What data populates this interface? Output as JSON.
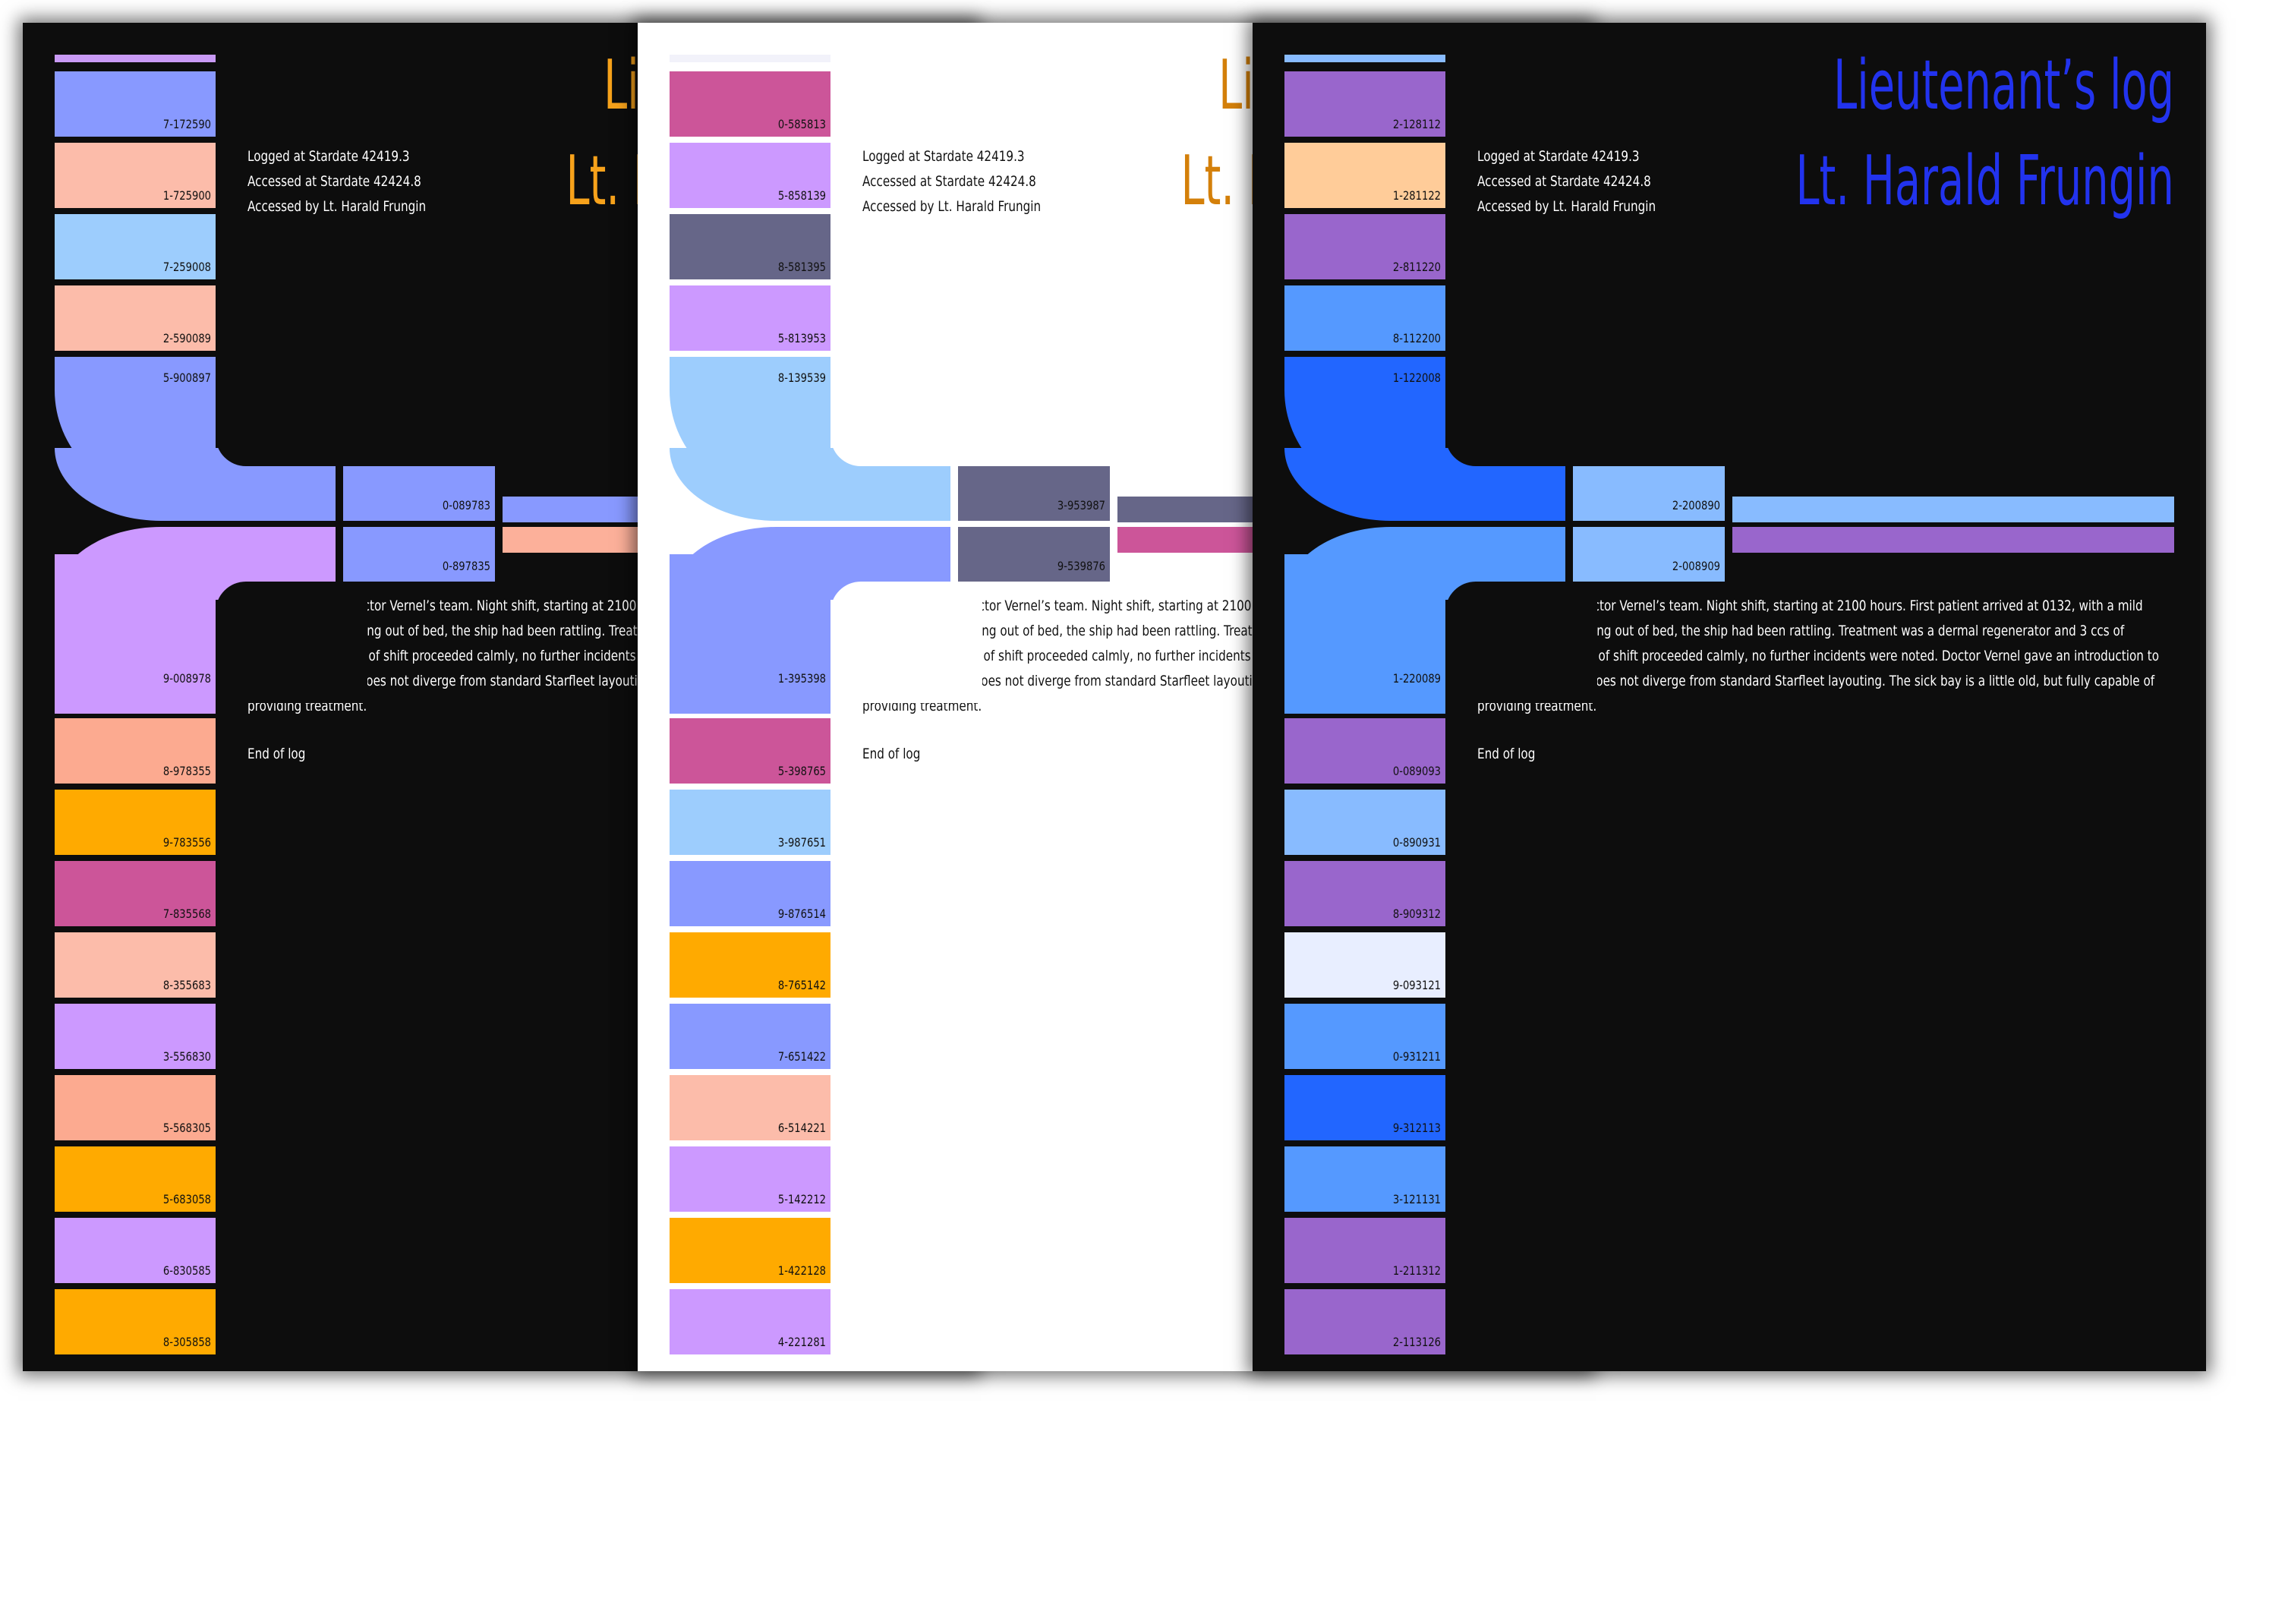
{
  "pages": [
    {
      "theme": "dark",
      "title_color": "#f7a21b",
      "top_strip_color": "#c99af5",
      "top_codes": [
        {
          "code": "7-172590",
          "color": "#8899ff"
        },
        {
          "code": "1-725900",
          "color": "#fcbcaa"
        },
        {
          "code": "7-259008",
          "color": "#9dcdfd"
        },
        {
          "code": "2-590089",
          "color": "#fcbcaa"
        }
      ],
      "elbow_top": {
        "code": "5-900897",
        "color": "#8899ff"
      },
      "elbow_bottom": {
        "code": "9-008978",
        "color": "#cc99ff"
      },
      "mid_codes": [
        {
          "code": "0-089783",
          "color": "#8899ff"
        },
        {
          "code": "0-897835",
          "color": "#8899ff"
        }
      ],
      "bar_colors": [
        "#8899ff",
        "#fcb09a"
      ],
      "bottom_codes": [
        {
          "code": "8-978355",
          "color": "#fcaa90"
        },
        {
          "code": "9-783556",
          "color": "#ffaa00"
        },
        {
          "code": "7-835568",
          "color": "#cc5599"
        },
        {
          "code": "8-355683",
          "color": "#fcbcaa"
        },
        {
          "code": "3-556830",
          "color": "#cc99ff"
        },
        {
          "code": "5-568305",
          "color": "#fcaa90"
        },
        {
          "code": "5-683058",
          "color": "#ffaa00"
        },
        {
          "code": "6-830585",
          "color": "#cc99ff"
        },
        {
          "code": "8-305858",
          "color": "#ffaa00"
        }
      ]
    },
    {
      "theme": "light",
      "title_color": "#d4800a",
      "top_strip_color": "#f2f2fa",
      "top_codes": [
        {
          "code": "0-585813",
          "color": "#cc5599"
        },
        {
          "code": "5-858139",
          "color": "#cc99ff"
        },
        {
          "code": "8-581395",
          "color": "#666688"
        },
        {
          "code": "5-813953",
          "color": "#cc99ff"
        }
      ],
      "elbow_top": {
        "code": "8-139539",
        "color": "#9dcdfd"
      },
      "elbow_bottom": {
        "code": "1-395398",
        "color": "#8899ff"
      },
      "mid_codes": [
        {
          "code": "3-953987",
          "color": "#666688"
        },
        {
          "code": "9-539876",
          "color": "#666688"
        }
      ],
      "bar_colors": [
        "#666688",
        "#cc5599"
      ],
      "bottom_codes": [
        {
          "code": "5-398765",
          "color": "#cc5599"
        },
        {
          "code": "3-987651",
          "color": "#9dcdfd"
        },
        {
          "code": "9-876514",
          "color": "#8899ff"
        },
        {
          "code": "8-765142",
          "color": "#ffaa00"
        },
        {
          "code": "7-651422",
          "color": "#8899ff"
        },
        {
          "code": "6-514221",
          "color": "#fcbcaa"
        },
        {
          "code": "5-142212",
          "color": "#cc99ff"
        },
        {
          "code": "1-422128",
          "color": "#ffaa00"
        },
        {
          "code": "4-221281",
          "color": "#cc99ff"
        }
      ]
    },
    {
      "theme": "dark",
      "title_color": "#2233ee",
      "top_strip_color": "#88bbff",
      "top_codes": [
        {
          "code": "2-128112",
          "color": "#9966cc"
        },
        {
          "code": "1-281122",
          "color": "#ffcc99"
        },
        {
          "code": "2-811220",
          "color": "#9966cc"
        },
        {
          "code": "8-112200",
          "color": "#5599ff"
        }
      ],
      "elbow_top": {
        "code": "1-122008",
        "color": "#2266ff"
      },
      "elbow_bottom": {
        "code": "1-220089",
        "color": "#5599ff"
      },
      "mid_codes": [
        {
          "code": "2-200890",
          "color": "#88bbff"
        },
        {
          "code": "2-008909",
          "color": "#88bbff"
        }
      ],
      "bar_colors": [
        "#88bbff",
        "#9966cc"
      ],
      "bottom_codes": [
        {
          "code": "0-089093",
          "color": "#9966cc"
        },
        {
          "code": "0-890931",
          "color": "#88bbff"
        },
        {
          "code": "8-909312",
          "color": "#9966cc"
        },
        {
          "code": "9-093121",
          "color": "#e8eeff"
        },
        {
          "code": "0-931211",
          "color": "#5599ff"
        },
        {
          "code": "9-312113",
          "color": "#2266ff"
        },
        {
          "code": "3-121131",
          "color": "#5599ff"
        },
        {
          "code": "1-211312",
          "color": "#9966cc"
        },
        {
          "code": "2-113126",
          "color": "#9966cc"
        }
      ]
    }
  ],
  "log": {
    "title": "Lieutenant’s log",
    "author": "Lt. Harald Frungin",
    "logged": "Logged at Stardate 42419.3",
    "accessed": "Accessed at Stardate 42424.8",
    "accessed_by": "Accessed by Lt. Harald Frungin",
    "body": "I got assigned to Doctor Vernel’s team. Night shift, starting at 2100 hours. First patient arrived at 0132, with a mild concussion after falling out of bed, the ship had been rattling. Treatment was a dermal regenerator and 3 ccs of Hydrocortilene. Rest of shift proceeded calmly, no further incidents were noted. Doctor Vernel gave an introduction to the sick bay, but it does not diverge from standard Starfleet layouting. The sick bay is a little old, but fully capable of providing treatment.",
    "end": "End of log"
  }
}
